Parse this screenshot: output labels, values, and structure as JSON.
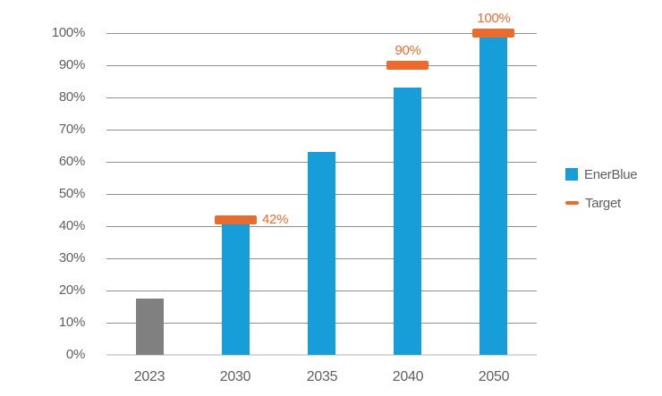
{
  "chart_data": {
    "type": "bar",
    "title": "",
    "xlabel": "",
    "ylabel": "",
    "categories": [
      "2023",
      "2030",
      "2035",
      "2040",
      "2050"
    ],
    "series": [
      {
        "name": "EnerBlue",
        "type": "bar",
        "values": [
          17.5,
          41,
          63,
          83,
          100
        ],
        "bar_colors": [
          "#808080",
          "#179dd7",
          "#179dd7",
          "#179dd7",
          "#179dd7"
        ]
      },
      {
        "name": "Target",
        "type": "target-marker",
        "values": [
          null,
          42,
          null,
          90,
          100
        ],
        "labels": [
          null,
          "42%",
          null,
          "90%",
          "100%"
        ],
        "label_positions": [
          null,
          "right",
          null,
          "above",
          "above"
        ],
        "color": "#e96c2e"
      }
    ],
    "ylim": [
      0,
      100
    ],
    "ytick_step": 10,
    "ytick_labels": [
      "0%",
      "10%",
      "20%",
      "30%",
      "40%",
      "50%",
      "60%",
      "70%",
      "80%",
      "90%",
      "100%"
    ],
    "grid": true,
    "legend_position": "right"
  },
  "legend": {
    "items": [
      {
        "label": "EnerBlue",
        "color": "#179dd7",
        "shape": "square"
      },
      {
        "label": "Target",
        "color": "#e96c2e",
        "shape": "dash"
      }
    ]
  },
  "colors": {
    "bar_blue": "#179dd7",
    "bar_gray": "#808080",
    "target_orange": "#e96c2e",
    "gridline": "#8f8f8f",
    "axis_line": "#d9d9d9",
    "tick_text": "#5f5f5f"
  }
}
